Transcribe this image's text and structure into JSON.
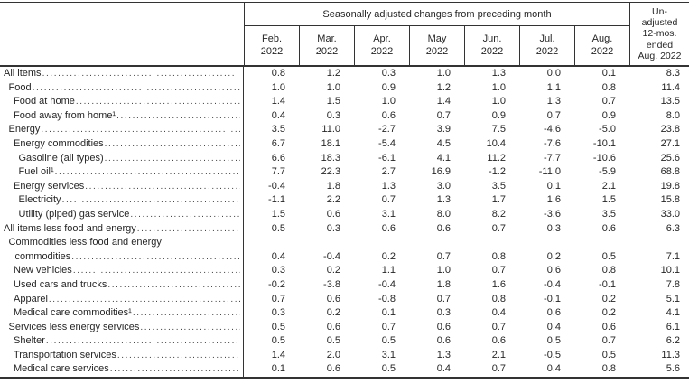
{
  "table": {
    "header": {
      "group_title": "Seasonally adjusted changes from preceding month",
      "unadjusted_label_lines": [
        "Un-",
        "adjusted",
        "12-mos.",
        "ended",
        "Aug. 2022"
      ],
      "months": [
        {
          "line1": "Feb.",
          "line2": "2022"
        },
        {
          "line1": "Mar.",
          "line2": "2022"
        },
        {
          "line1": "Apr.",
          "line2": "2022"
        },
        {
          "line1": "May",
          "line2": "2022"
        },
        {
          "line1": "Jun.",
          "line2": "2022"
        },
        {
          "line1": "Jul.",
          "line2": "2022"
        },
        {
          "line1": "Aug.",
          "line2": "2022"
        }
      ]
    },
    "rows": [
      {
        "label": "All items",
        "indent": 0,
        "values": [
          "0.8",
          "1.2",
          "0.3",
          "1.0",
          "1.3",
          "0.0",
          "0.1",
          "8.3"
        ]
      },
      {
        "label": "Food",
        "indent": 1,
        "values": [
          "1.0",
          "1.0",
          "0.9",
          "1.2",
          "1.0",
          "1.1",
          "0.8",
          "11.4"
        ]
      },
      {
        "label": "Food at home",
        "indent": 2,
        "values": [
          "1.4",
          "1.5",
          "1.0",
          "1.4",
          "1.0",
          "1.3",
          "0.7",
          "13.5"
        ]
      },
      {
        "label": "Food away from home¹",
        "indent": 2,
        "values": [
          "0.4",
          "0.3",
          "0.6",
          "0.7",
          "0.9",
          "0.7",
          "0.9",
          "8.0"
        ]
      },
      {
        "label": "Energy",
        "indent": 1,
        "values": [
          "3.5",
          "11.0",
          "-2.7",
          "3.9",
          "7.5",
          "-4.6",
          "-5.0",
          "23.8"
        ]
      },
      {
        "label": "Energy commodities",
        "indent": 2,
        "values": [
          "6.7",
          "18.1",
          "-5.4",
          "4.5",
          "10.4",
          "-7.6",
          "-10.1",
          "27.1"
        ]
      },
      {
        "label": "Gasoline (all types)",
        "indent": 3,
        "values": [
          "6.6",
          "18.3",
          "-6.1",
          "4.1",
          "11.2",
          "-7.7",
          "-10.6",
          "25.6"
        ]
      },
      {
        "label": "Fuel oil¹",
        "indent": 3,
        "values": [
          "7.7",
          "22.3",
          "2.7",
          "16.9",
          "-1.2",
          "-11.0",
          "-5.9",
          "68.8"
        ]
      },
      {
        "label": "Energy services",
        "indent": 2,
        "values": [
          "-0.4",
          "1.8",
          "1.3",
          "3.0",
          "3.5",
          "0.1",
          "2.1",
          "19.8"
        ]
      },
      {
        "label": "Electricity",
        "indent": 3,
        "values": [
          "-1.1",
          "2.2",
          "0.7",
          "1.3",
          "1.7",
          "1.6",
          "1.5",
          "15.8"
        ]
      },
      {
        "label": "Utility (piped) gas service",
        "indent": 3,
        "values": [
          "1.5",
          "0.6",
          "3.1",
          "8.0",
          "8.2",
          "-3.6",
          "3.5",
          "33.0"
        ]
      },
      {
        "label": "All items less food and energy",
        "indent": 0,
        "values": [
          "0.5",
          "0.3",
          "0.6",
          "0.6",
          "0.7",
          "0.3",
          "0.6",
          "6.3"
        ]
      },
      {
        "label": "Commodities less food and energy",
        "label2": "commodities",
        "indent": 1,
        "values": [
          "0.4",
          "-0.4",
          "0.2",
          "0.7",
          "0.8",
          "0.2",
          "0.5",
          "7.1"
        ]
      },
      {
        "label": "New vehicles",
        "indent": 2,
        "values": [
          "0.3",
          "0.2",
          "1.1",
          "1.0",
          "0.7",
          "0.6",
          "0.8",
          "10.1"
        ]
      },
      {
        "label": "Used cars and trucks",
        "indent": 2,
        "values": [
          "-0.2",
          "-3.8",
          "-0.4",
          "1.8",
          "1.6",
          "-0.4",
          "-0.1",
          "7.8"
        ]
      },
      {
        "label": "Apparel",
        "indent": 2,
        "values": [
          "0.7",
          "0.6",
          "-0.8",
          "0.7",
          "0.8",
          "-0.1",
          "0.2",
          "5.1"
        ]
      },
      {
        "label": "Medical care commodities¹",
        "indent": 2,
        "values": [
          "0.3",
          "0.2",
          "0.1",
          "0.3",
          "0.4",
          "0.6",
          "0.2",
          "4.1"
        ]
      },
      {
        "label": "Services less energy services",
        "indent": 1,
        "values": [
          "0.5",
          "0.6",
          "0.7",
          "0.6",
          "0.7",
          "0.4",
          "0.6",
          "6.1"
        ]
      },
      {
        "label": "Shelter",
        "indent": 2,
        "values": [
          "0.5",
          "0.5",
          "0.5",
          "0.6",
          "0.6",
          "0.5",
          "0.7",
          "6.2"
        ]
      },
      {
        "label": "Transportation services",
        "indent": 2,
        "values": [
          "1.4",
          "2.0",
          "3.1",
          "1.3",
          "2.1",
          "-0.5",
          "0.5",
          "11.3"
        ]
      },
      {
        "label": "Medical care services",
        "indent": 2,
        "values": [
          "0.1",
          "0.6",
          "0.5",
          "0.4",
          "0.7",
          "0.4",
          "0.8",
          "5.6"
        ]
      }
    ]
  }
}
